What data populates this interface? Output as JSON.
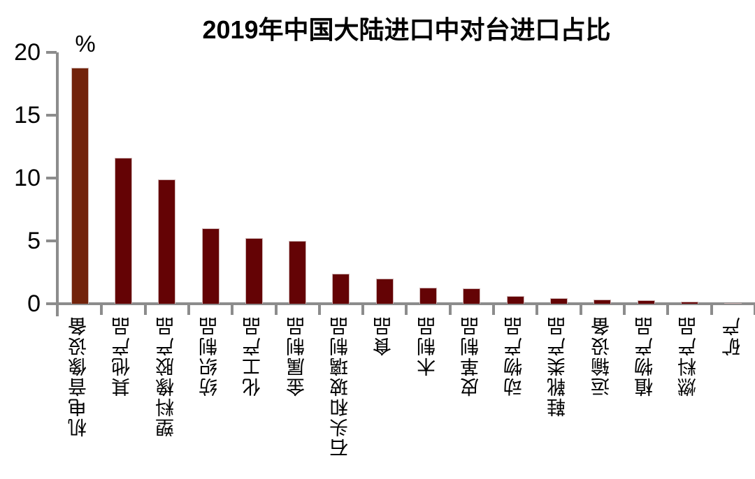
{
  "title": "2019年中国大陆进口中对台进口占比",
  "chart_data": {
    "type": "bar",
    "title": "2019年中国大陆进口中对台进口占比",
    "unit_label": "%",
    "categories": [
      "机电音像设备",
      "其他产品",
      "塑料橡胶产品",
      "纺织制品",
      "化工产品",
      "金属制品",
      "石头和玻璃制品",
      "食品",
      "木制品",
      "皮革制品",
      "动物产品",
      "鞋靴类产品",
      "运输设备",
      "植物产品",
      "燃料产品",
      "矿产"
    ],
    "values": [
      18.8,
      11.6,
      9.9,
      6.0,
      5.2,
      5.0,
      2.4,
      2.0,
      1.3,
      1.2,
      0.6,
      0.45,
      0.35,
      0.3,
      0.15,
      0.05
    ],
    "ylabel": "%",
    "xlabel": "",
    "ylim": [
      0,
      20
    ],
    "yticks": [
      0,
      5,
      10,
      15,
      20
    ],
    "grid": false,
    "legend": "none",
    "colors": {
      "bar": "#640305",
      "highlight_bar": "#72230B",
      "axis": "#8c8c8c",
      "title_text": "#000000"
    },
    "highlight_index": 0
  }
}
